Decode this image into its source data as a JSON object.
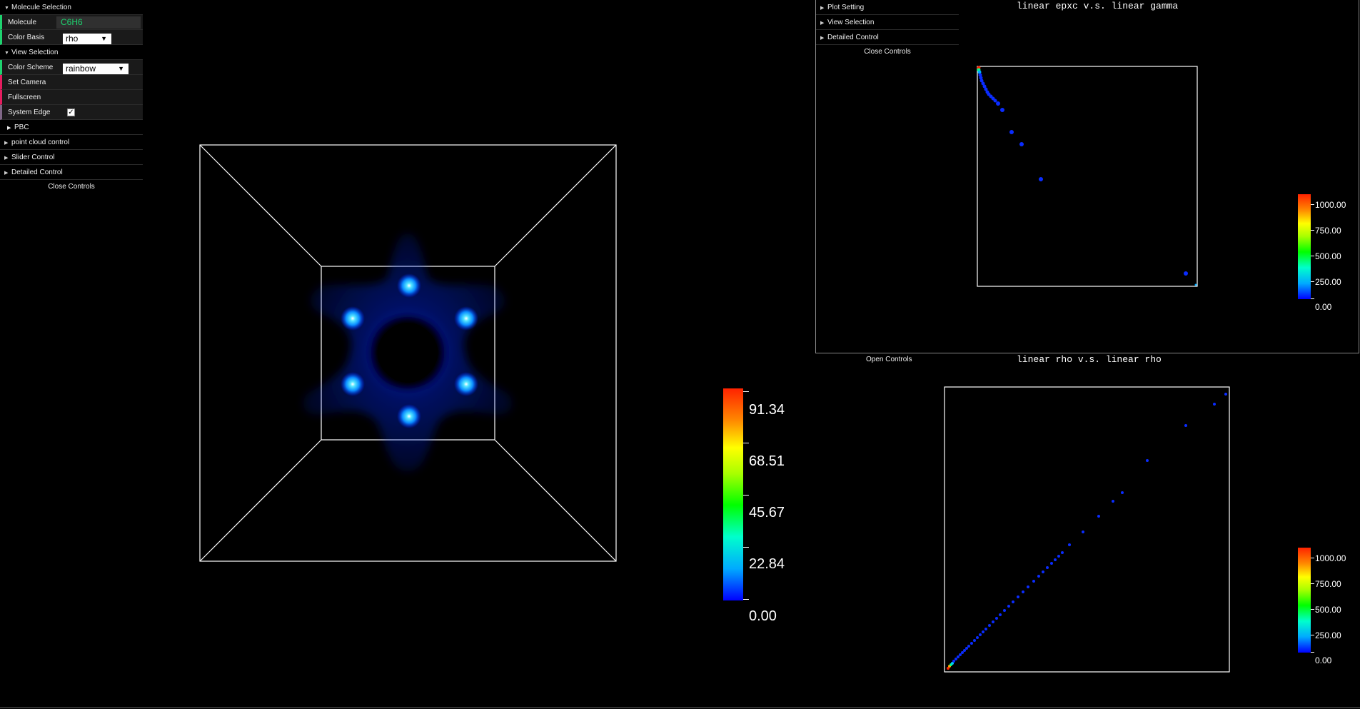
{
  "main_gui": {
    "molecule_selection": "Molecule Selection",
    "molecule_label": "Molecule",
    "molecule_value": "C6H6",
    "color_basis_label": "Color Basis",
    "color_basis_value": "rho",
    "view_selection": "View Selection",
    "color_scheme_label": "Color Scheme",
    "color_scheme_value": "rainbow",
    "set_camera": "Set Camera",
    "fullscreen": "Fullscreen",
    "system_edge_label": "System Edge",
    "system_edge_checked": "✓",
    "pbc": "PBC",
    "point_cloud_control": "point cloud control",
    "slider_control": "Slider Control",
    "detailed_control": "Detailed Control",
    "close_controls": "Close Controls"
  },
  "main_colorbar": {
    "labels": [
      "91.34",
      "68.51",
      "45.67",
      "22.84",
      "0.00"
    ]
  },
  "plot1": {
    "gui": {
      "plot_setting": "Plot Setting",
      "view_selection": "View Selection",
      "detailed_control": "Detailed Control",
      "close_controls": "Close Controls"
    },
    "title": "linear epxc v.s. linear gamma",
    "colorbar_labels": [
      "1000.00",
      "750.00",
      "500.00",
      "250.00",
      "0.00"
    ]
  },
  "plot2": {
    "open_controls": "Open Controls",
    "title": "linear rho v.s. linear rho",
    "colorbar_labels": [
      "1000.00",
      "750.00",
      "500.00",
      "250.00",
      "0.00"
    ]
  },
  "colors": {
    "accent_green": "#1ed36f",
    "accent_red": "#e61d5f",
    "point_blue": "#0a2cff",
    "atom_cyan": "#33ccff"
  }
}
